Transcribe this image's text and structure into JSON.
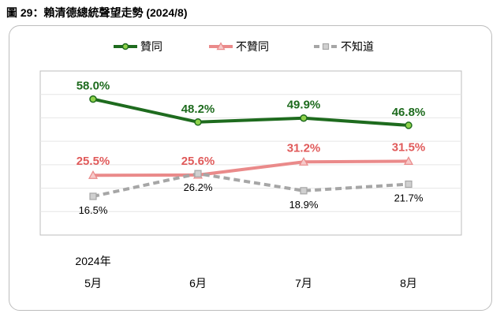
{
  "figure_title": "圖 29：賴清德總統聲望走勢 (2024/8)",
  "chart_data": {
    "type": "line",
    "categories": [
      "5月",
      "6月",
      "7月",
      "8月"
    ],
    "year_label": "2024年",
    "ylim": [
      0,
      70
    ],
    "grid": true,
    "legend_position": "top",
    "series": [
      {
        "name": "贊同",
        "values": [
          58.0,
          48.2,
          49.9,
          46.8
        ],
        "labels": [
          "58.0%",
          "48.2%",
          "49.9%",
          "46.8%"
        ],
        "color": "#1e6b1e",
        "marker_fill": "#8fd24b",
        "marker": "circle",
        "dash": false
      },
      {
        "name": "不贊同",
        "values": [
          25.5,
          25.6,
          31.2,
          31.5
        ],
        "labels": [
          "25.5%",
          "25.6%",
          "31.2%",
          "31.5%"
        ],
        "color": "#ea8a8a",
        "marker_fill": "#f6c9c9",
        "marker": "triangle",
        "dash": false
      },
      {
        "name": "不知道",
        "values": [
          16.5,
          26.2,
          18.9,
          21.7
        ],
        "labels": [
          "16.5%",
          "26.2%",
          "18.9%",
          "21.7%"
        ],
        "color": "#a6a6a6",
        "marker_fill": "#d0d0d0",
        "marker": "square",
        "dash": true
      }
    ]
  }
}
